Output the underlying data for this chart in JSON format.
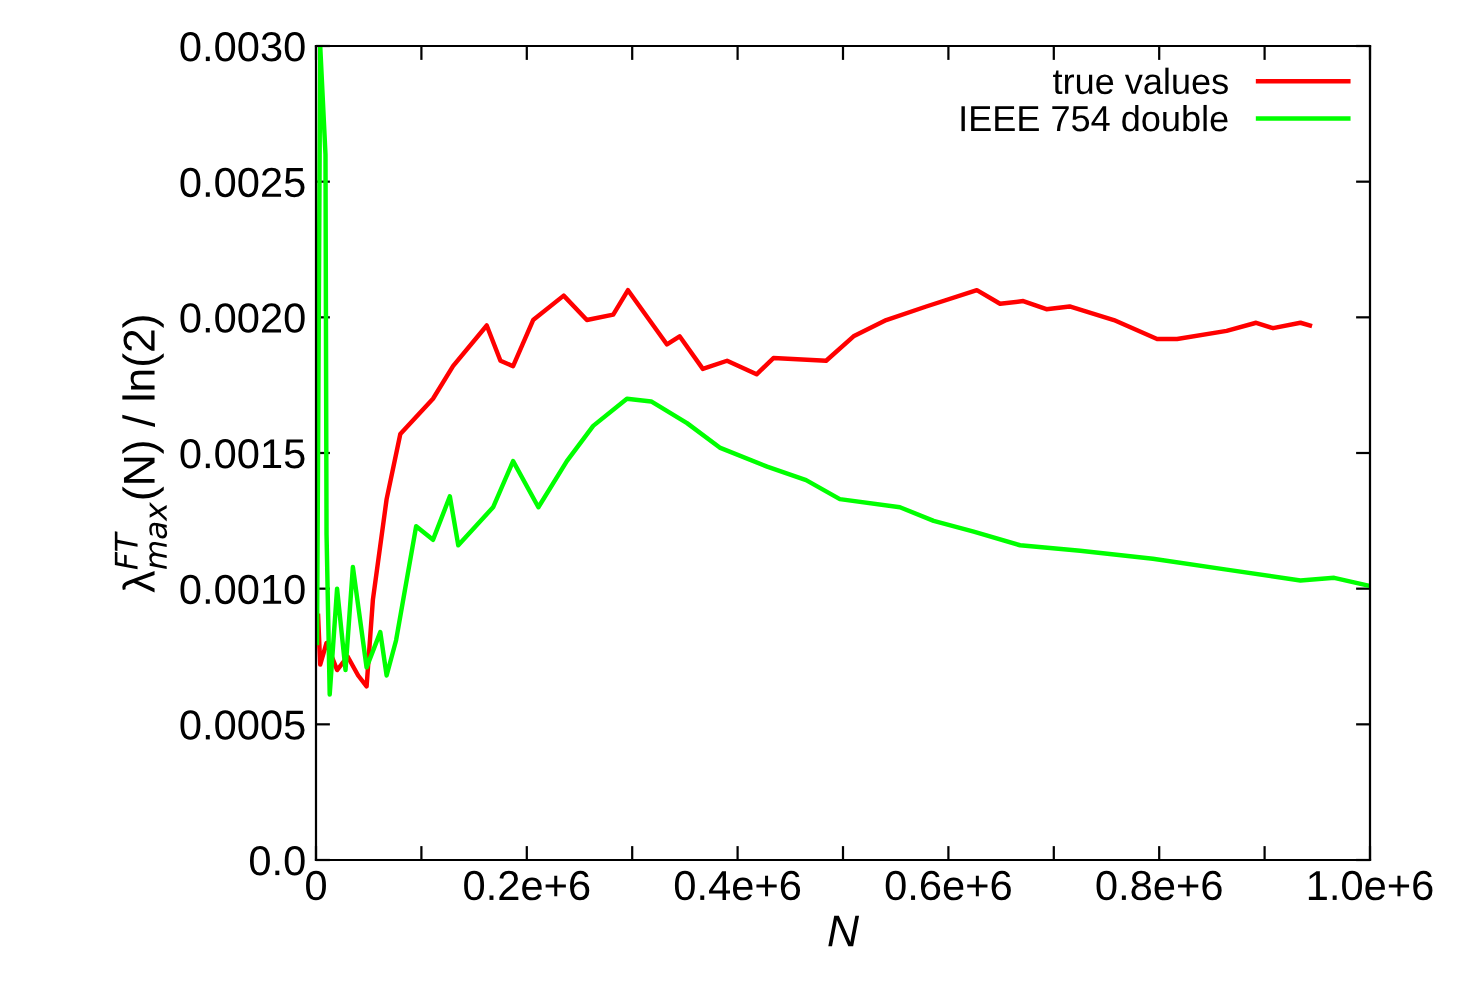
{
  "chart_data": {
    "type": "line",
    "xlabel": "N",
    "ylabel": "λ$^{FT}$$_{max}$(N) / ln(2)",
    "xlim": [
      0,
      1000000
    ],
    "ylim": [
      0,
      0.003
    ],
    "xticks": [
      {
        "value": 0,
        "label": "0"
      },
      {
        "value": 100000,
        "label": null
      },
      {
        "value": 200000,
        "label": "0.2e+6"
      },
      {
        "value": 300000,
        "label": null
      },
      {
        "value": 400000,
        "label": "0.4e+6"
      },
      {
        "value": 500000,
        "label": null
      },
      {
        "value": 600000,
        "label": "0.6e+6"
      },
      {
        "value": 700000,
        "label": null
      },
      {
        "value": 800000,
        "label": "0.8e+6"
      },
      {
        "value": 900000,
        "label": null
      },
      {
        "value": 1000000,
        "label": "1.0e+6"
      }
    ],
    "yticks": [
      {
        "value": 0,
        "label": "0.0"
      },
      {
        "value": 0.0005,
        "label": "0.0005"
      },
      {
        "value": 0.001,
        "label": "0.0010"
      },
      {
        "value": 0.0015,
        "label": "0.0015"
      },
      {
        "value": 0.002,
        "label": "0.0020"
      },
      {
        "value": 0.0025,
        "label": "0.0025"
      },
      {
        "value": 0.003,
        "label": "0.0030"
      }
    ],
    "legend": "top right",
    "grid": false,
    "series": [
      {
        "name": "true values",
        "color": "#ff0000",
        "x": [
          2000,
          4000,
          10000,
          20000,
          30000,
          40000,
          48000,
          54000,
          67000,
          80000,
          111000,
          130000,
          162000,
          175000,
          187000,
          206000,
          235000,
          257000,
          282000,
          296000,
          333000,
          345000,
          367000,
          390000,
          418000,
          434000,
          484000,
          510000,
          541000,
          579000,
          627000,
          649000,
          671000,
          693000,
          715000,
          757000,
          798000,
          817000,
          864000,
          892000,
          908000,
          934000,
          943000
        ],
        "values": [
          0.0009,
          0.00072,
          0.0008,
          0.0007,
          0.00075,
          0.00068,
          0.00064,
          0.00096,
          0.00133,
          0.00157,
          0.0017,
          0.00182,
          0.00197,
          0.00184,
          0.00182,
          0.00199,
          0.00208,
          0.00199,
          0.00201,
          0.0021,
          0.0019,
          0.00193,
          0.00181,
          0.00184,
          0.00179,
          0.00185,
          0.00184,
          0.00193,
          0.00199,
          0.00204,
          0.0021,
          0.00205,
          0.00206,
          0.00203,
          0.00204,
          0.00199,
          0.00192,
          0.00192,
          0.00195,
          0.00198,
          0.00196,
          0.00198,
          0.00197
        ]
      },
      {
        "name": "IEEE 754 double",
        "color": "#00ff00",
        "x": [
          1000,
          4000,
          9000,
          10000,
          13000,
          20000,
          28000,
          35000,
          48000,
          61000,
          67000,
          76000,
          95000,
          111000,
          127000,
          135000,
          168000,
          187000,
          211000,
          238000,
          263000,
          295000,
          318000,
          352000,
          383000,
          428000,
          465000,
          497000,
          554000,
          586000,
          624000,
          668000,
          725000,
          794000,
          864000,
          934000,
          966000,
          1000000
        ],
        "values": [
          0.0008,
          0.003,
          0.0026,
          0.0012,
          0.00061,
          0.001,
          0.0007,
          0.00108,
          0.00071,
          0.00084,
          0.00068,
          0.00081,
          0.00123,
          0.00118,
          0.00134,
          0.00116,
          0.0013,
          0.00147,
          0.0013,
          0.00147,
          0.0016,
          0.0017,
          0.00169,
          0.00161,
          0.00152,
          0.00145,
          0.0014,
          0.00133,
          0.0013,
          0.00125,
          0.00121,
          0.00116,
          0.00114,
          0.00111,
          0.00107,
          0.00103,
          0.00104,
          0.00101
        ]
      }
    ]
  }
}
